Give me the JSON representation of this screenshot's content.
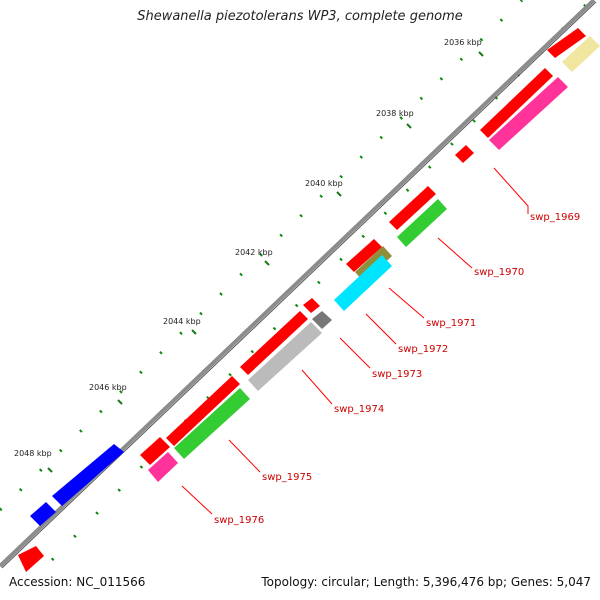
{
  "title": "Shewanella piezotolerans WP3, complete genome",
  "footer": {
    "accession": "Accession: NC_011566",
    "summary": "Topology: circular; Length: 5,396,476 bp; Genes: 5,047"
  },
  "kbp_labels": [
    "2036 kbp",
    "2038 kbp",
    "2040 kbp",
    "2042 kbp",
    "2044 kbp",
    "2046 kbp",
    "2048 kbp"
  ],
  "gene_labels": [
    "swp_1969",
    "swp_1970",
    "swp_1971",
    "swp_1972",
    "swp_1973",
    "swp_1974",
    "swp_1975",
    "swp_1976"
  ],
  "colors": {
    "backbone": "#8c8c8c",
    "red": "#ff0000",
    "green": "#33cc33",
    "magenta": "#ff3399",
    "yellow": "#f0e6a0",
    "gray": "#bbbbbb",
    "dark_gray": "#777777",
    "cyan": "#00e5ff",
    "olive": "#8f8f3a",
    "blue": "#0000ff",
    "tick": "#008000",
    "label_line": "#ff0000",
    "label_text": "#cc0000"
  }
}
